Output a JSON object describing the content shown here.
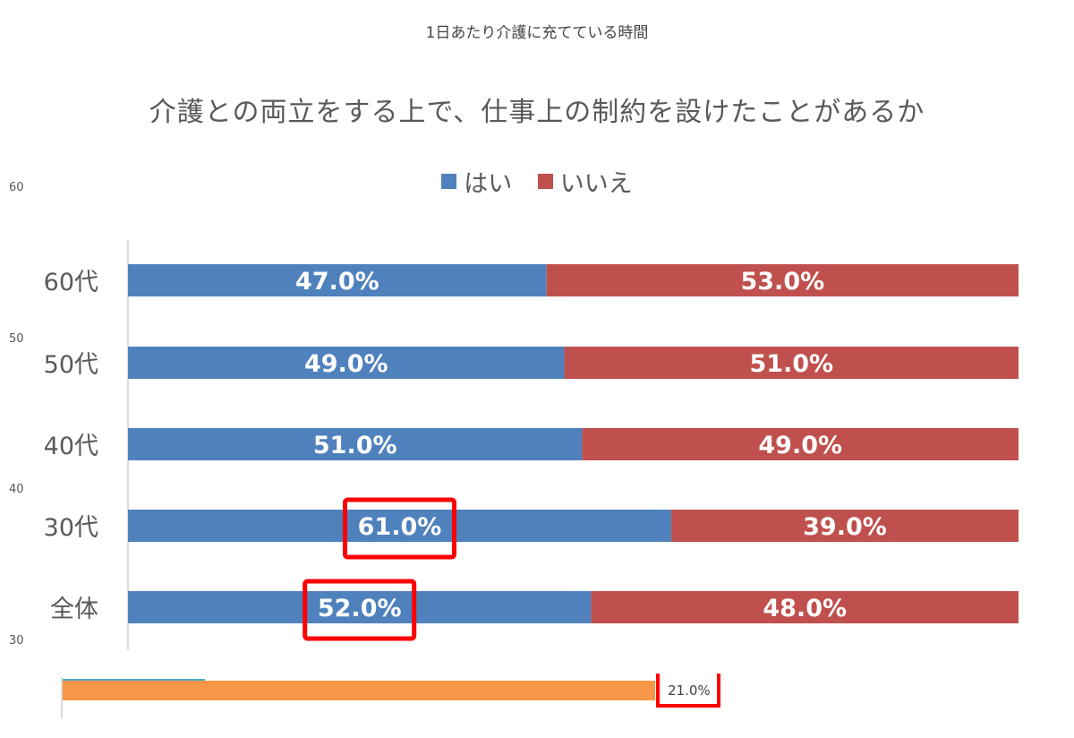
{
  "background": {
    "title": "1日あたり介護に充てている時間",
    "partial_ticks": [
      "60",
      "50",
      "40",
      "30"
    ],
    "partial_bar_label": "21.0%"
  },
  "chart_data": {
    "type": "bar",
    "orientation": "horizontal",
    "stacked": true,
    "title": "介護との両立をする上で、仕事上の制約を設けたことがあるか",
    "legend_position": "top",
    "categories": [
      "60代",
      "50代",
      "40代",
      "30代",
      "全体"
    ],
    "series": [
      {
        "name": "はい",
        "color": "#4f81bd",
        "values": [
          47.0,
          49.0,
          51.0,
          61.0,
          52.0
        ],
        "labels": [
          "47.0%",
          "49.0%",
          "51.0%",
          "61.0%",
          "52.0%"
        ]
      },
      {
        "name": "いいえ",
        "color": "#c0504d",
        "values": [
          53.0,
          51.0,
          49.0,
          39.0,
          48.0
        ],
        "labels": [
          "53.0%",
          "51.0%",
          "49.0%",
          "39.0%",
          "48.0%"
        ]
      }
    ],
    "xlim": [
      0,
      100
    ],
    "highlighted_labels": [
      "30代",
      "全体"
    ],
    "highlight_color": "#ff0000"
  }
}
